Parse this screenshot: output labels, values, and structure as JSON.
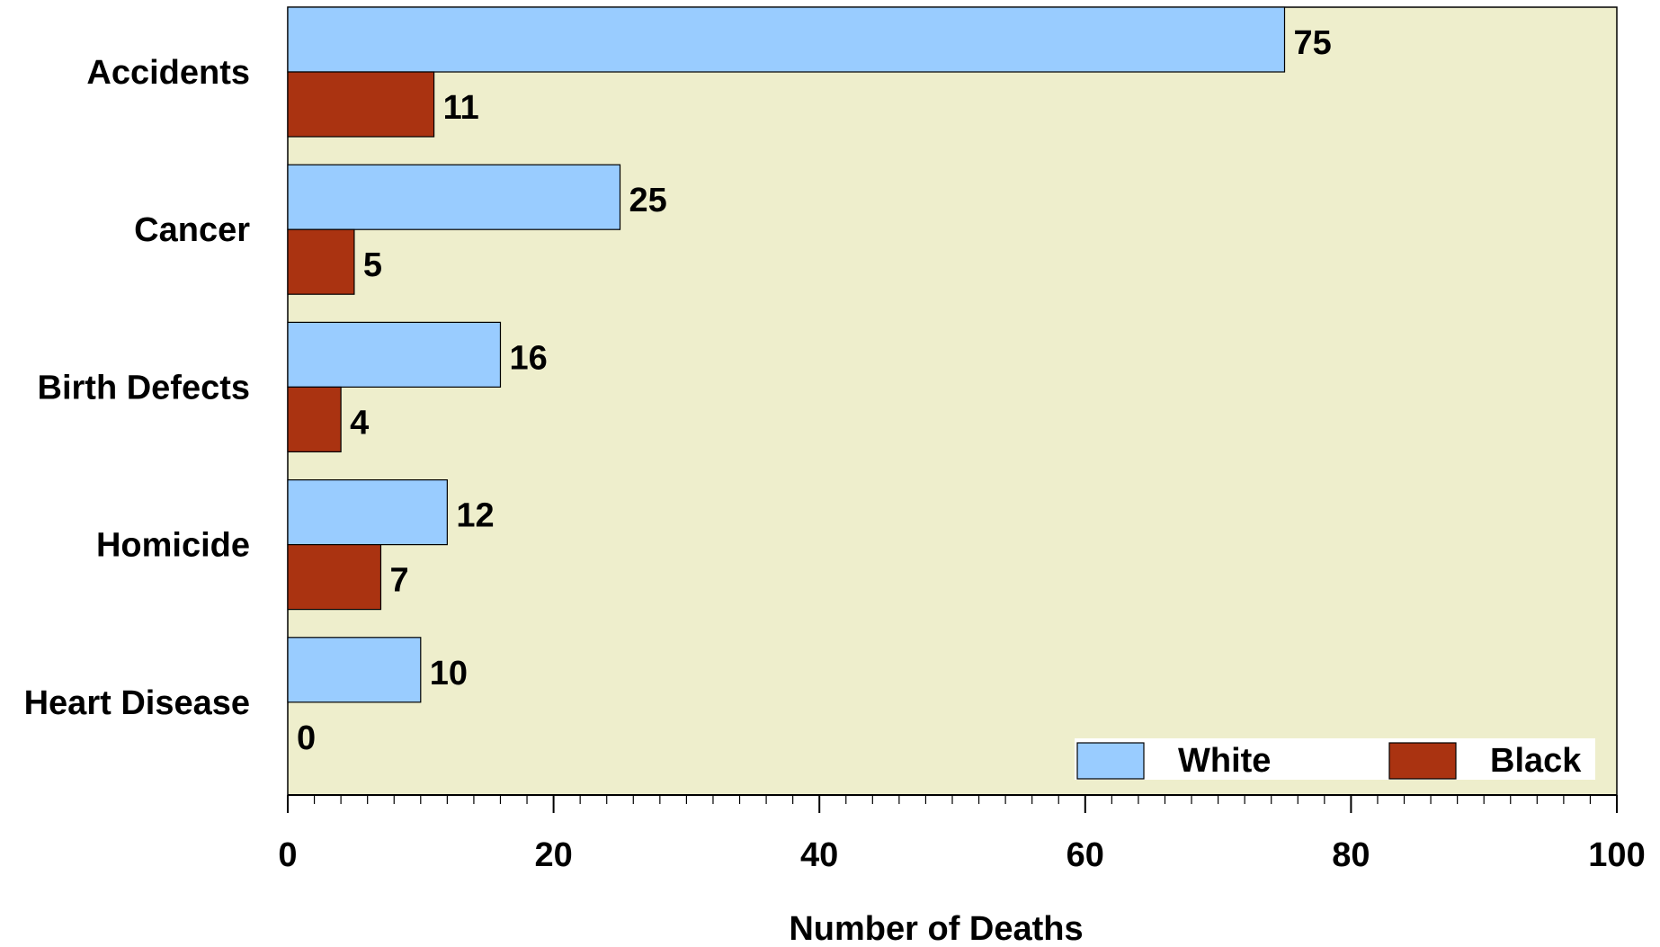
{
  "chart_data": {
    "type": "bar",
    "orientation": "horizontal",
    "categories": [
      "Accidents",
      "Cancer",
      "Birth Defects",
      "Homicide",
      "Heart Disease"
    ],
    "series": [
      {
        "name": "White",
        "values": [
          75,
          25,
          16,
          12,
          10
        ]
      },
      {
        "name": "Black",
        "values": [
          11,
          5,
          4,
          7,
          0
        ]
      }
    ],
    "xlabel": "Number of Deaths",
    "ylabel": "",
    "xlim": [
      0,
      100
    ],
    "x_ticks": [
      0,
      20,
      40,
      60,
      80,
      100
    ],
    "x_minor_step": 2,
    "grid": false,
    "legend_position": "bottom-right",
    "colors": {
      "plot_background": "#EEEECC",
      "White": "#99CCFF",
      "Black": "#AA3311",
      "axis": "#000000",
      "legend_background": "#FFFFFF"
    }
  }
}
